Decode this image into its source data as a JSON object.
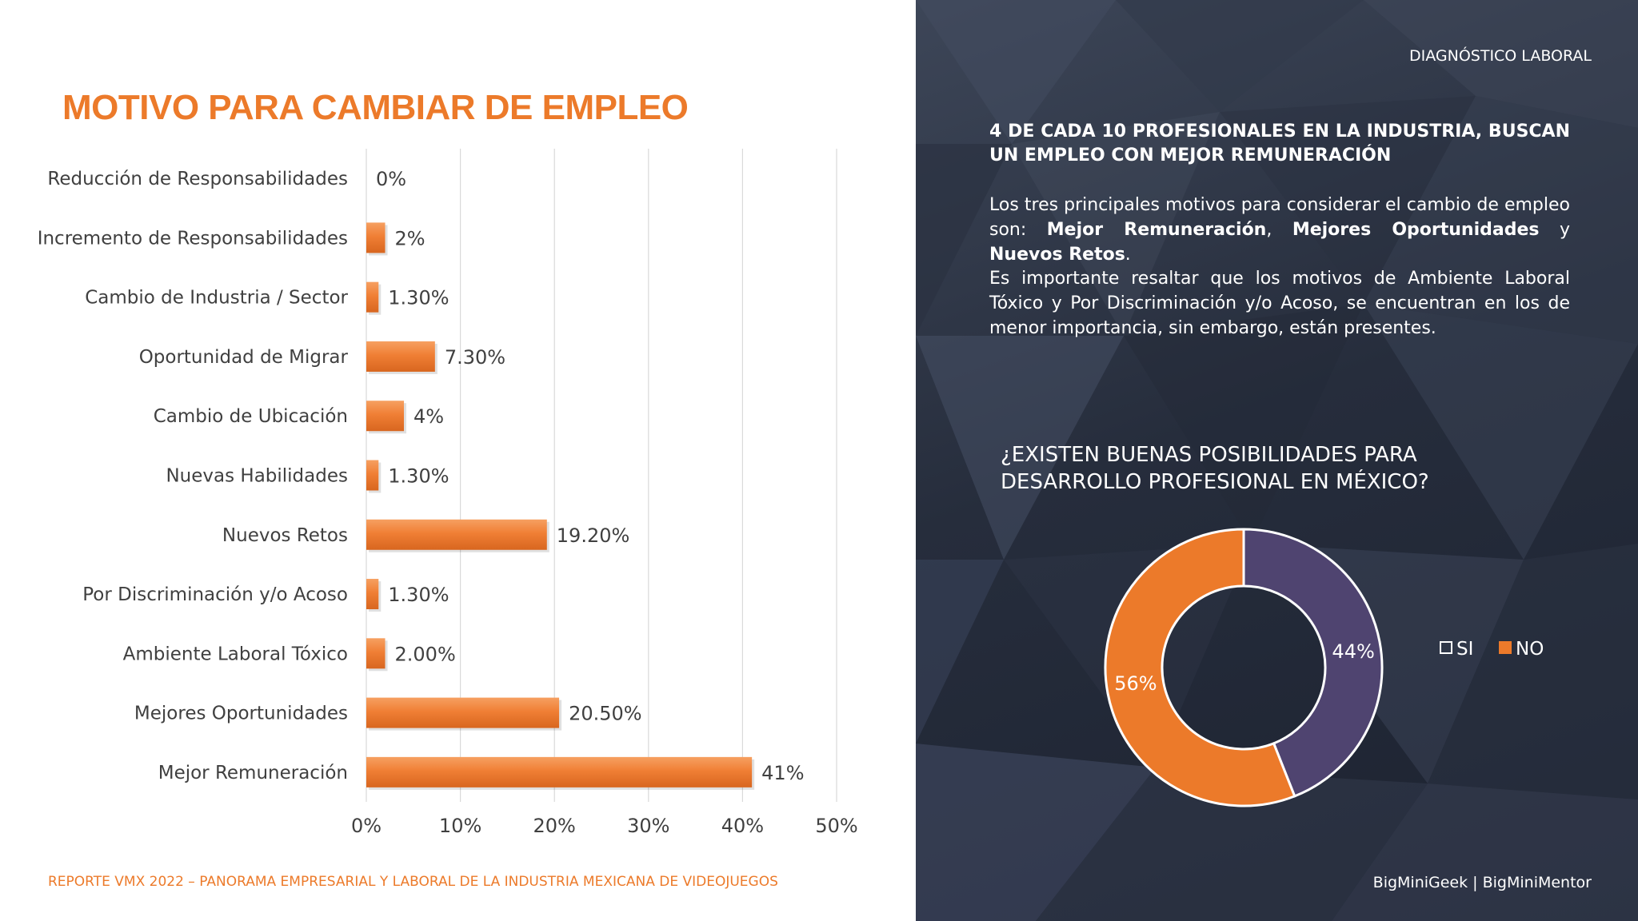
{
  "left_panel": {
    "title": "MOTIVO PARA CAMBIAR DE EMPLEO",
    "footer": "REPORTE VMX 2022 – PANORAMA EMPRESARIAL Y LABORAL DE LA INDUSTRIA MEXICANA DE VIDEOJUEGOS"
  },
  "right_panel": {
    "section_label": "DIAGNÓSTICO LABORAL",
    "headline": "4 DE CADA 10 PROFESIONALES EN LA INDUSTRIA, BUSCAN UN EMPLEO CON MEJOR REMUNERACIÓN",
    "paragraph1": {
      "prefix": "Los tres principales motivos para considerar el cambio de empleo son: ",
      "bold1": "Mejor Remuneración",
      "sep1": ", ",
      "bold2": "Mejores Oportunidades",
      "sep2": " y ",
      "bold3": "Nuevos Retos",
      "suffix": "."
    },
    "paragraph2": "Es importante resaltar que los motivos de Ambiente Laboral Tóxico y Por Discriminación y/o Acoso, se encuentran en los de menor importancia, sin embargo, están presentes.",
    "donut_title": "¿EXISTEN BUENAS POSIBILIDADES PARA DESARROLLO PROFESIONAL EN MÉXICO?",
    "credit": "BigMiniGeek  |  BigMiniMentor"
  },
  "colors": {
    "accent_orange": "#ec7a2a",
    "bar_orange": "#f07f35",
    "donut_purple": "#4f4470",
    "text_dark": "#404040",
    "grid": "#d9d9d9"
  },
  "chart_data": [
    {
      "type": "bar",
      "orientation": "horizontal",
      "title": "MOTIVO PARA CAMBIAR DE EMPLEO",
      "categories": [
        "Reducción de Responsabilidades",
        "Incremento de Responsabilidades",
        "Cambio de Industria / Sector",
        "Oportunidad de Migrar",
        "Cambio de Ubicación",
        "Nuevas Habilidades",
        "Nuevos Retos",
        "Por Discriminación y/o Acoso",
        "Ambiente Laboral Tóxico",
        "Mejores Oportunidades",
        "Mejor Remuneración"
      ],
      "values": [
        0,
        2,
        1.3,
        7.3,
        4,
        1.3,
        19.2,
        1.3,
        2.0,
        20.5,
        41
      ],
      "data_labels": [
        "0%",
        "2%",
        "1.30%",
        "7.30%",
        "4%",
        "1.30%",
        "19.20%",
        "1.30%",
        "2.00%",
        "20.50%",
        "41%"
      ],
      "xlim": [
        0,
        50
      ],
      "xticks": [
        "0%",
        "10%",
        "20%",
        "30%",
        "40%",
        "50%"
      ],
      "grid": true
    },
    {
      "type": "pie",
      "variant": "donut",
      "title": "¿EXISTEN BUENAS POSIBILIDADES PARA DESARROLLO PROFESIONAL EN MÉXICO?",
      "categories": [
        "SI",
        "NO"
      ],
      "values": [
        44,
        56
      ],
      "data_labels": [
        "44%",
        "56%"
      ],
      "colors": [
        "#4f4470",
        "#ec7a2a"
      ],
      "legend": "right"
    }
  ]
}
